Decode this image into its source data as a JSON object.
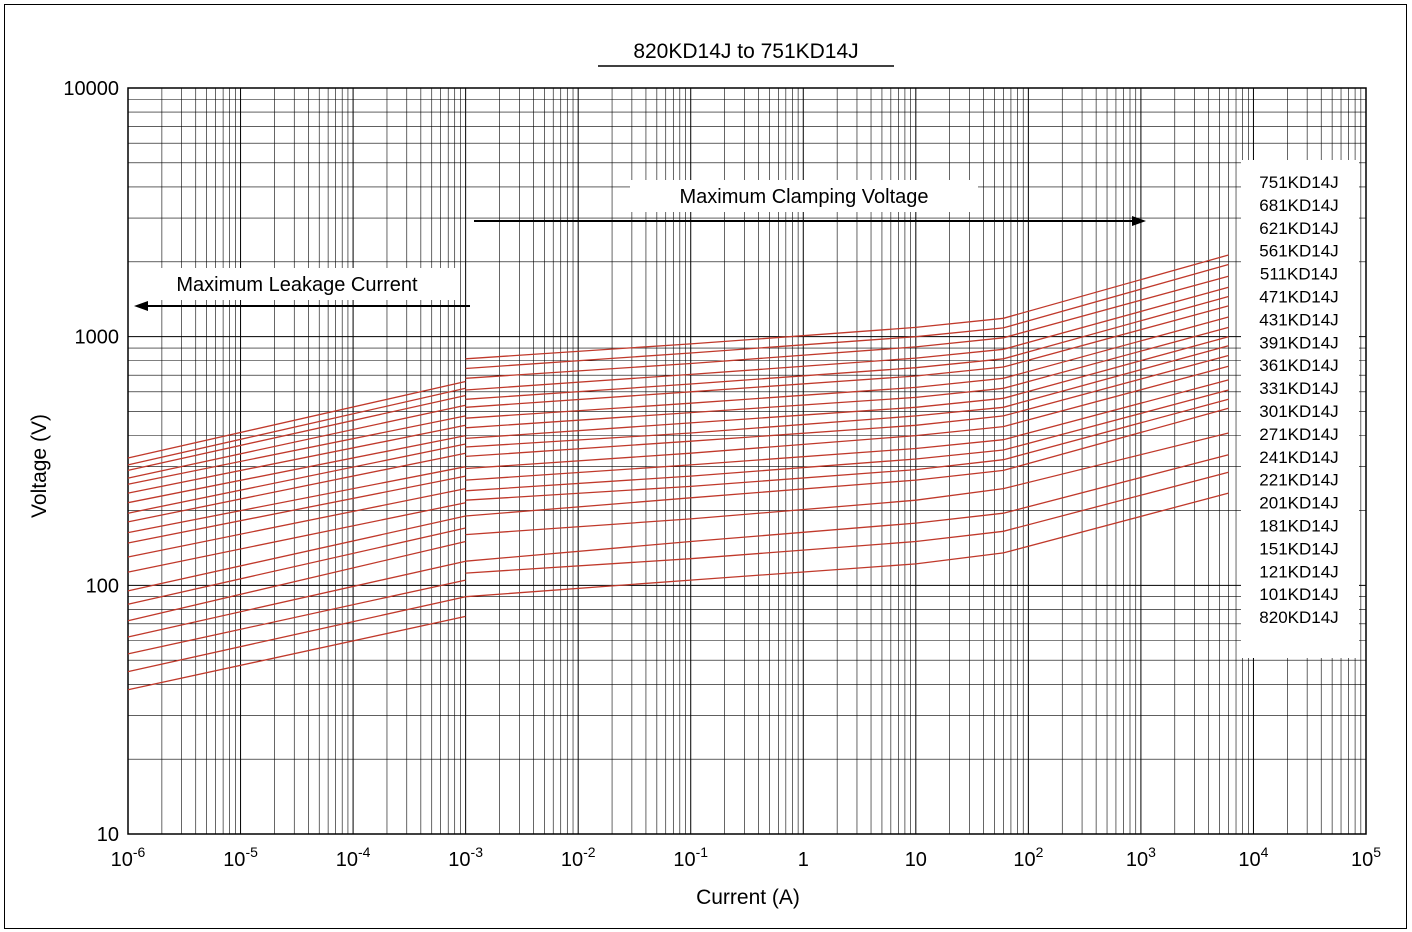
{
  "chart_data": {
    "type": "line",
    "title": "820KD14J to 751KD14J",
    "xlabel": "Current (A)",
    "ylabel": "Voltage (V)",
    "xscale": "log",
    "yscale": "log",
    "xlim": [
      1e-06,
      100000
    ],
    "ylim": [
      10,
      10000
    ],
    "grid": true,
    "x_ticks": [
      {
        "base": "10",
        "exp": "-6"
      },
      {
        "base": "10",
        "exp": "-5"
      },
      {
        "base": "10",
        "exp": "-4"
      },
      {
        "base": "10",
        "exp": "-3"
      },
      {
        "base": "10",
        "exp": "-2"
      },
      {
        "base": "10",
        "exp": "-1"
      },
      {
        "base": "1",
        "exp": ""
      },
      {
        "base": "10",
        "exp": ""
      },
      {
        "base": "10",
        "exp": "2"
      },
      {
        "base": "10",
        "exp": "3"
      },
      {
        "base": "10",
        "exp": "4"
      },
      {
        "base": "10",
        "exp": "5"
      }
    ],
    "y_ticks": [
      "10",
      "100",
      "1000",
      "10000"
    ],
    "line_color": "#c0392b",
    "annotations": {
      "leakage": "Maximum Leakage Current",
      "clamping": "Maximum Clamping Voltage"
    },
    "legend_position": "right",
    "series": [
      {
        "name": "820KD14J",
        "leakage": [
          [
            1e-06,
            38
          ],
          [
            0.001,
            75
          ]
        ],
        "clamping": [
          [
            0.001,
            90
          ],
          [
            0.1,
            105
          ],
          [
            10,
            122
          ],
          [
            60,
            135
          ],
          [
            6000,
            235
          ]
        ]
      },
      {
        "name": "101KD14J",
        "leakage": [
          [
            1e-06,
            45
          ],
          [
            0.001,
            90
          ]
        ],
        "clamping": [
          [
            0.001,
            112
          ],
          [
            0.1,
            128
          ],
          [
            10,
            150
          ],
          [
            60,
            165
          ],
          [
            6000,
            285
          ]
        ]
      },
      {
        "name": "121KD14J",
        "leakage": [
          [
            1e-06,
            53
          ],
          [
            0.001,
            105
          ]
        ],
        "clamping": [
          [
            0.001,
            125
          ],
          [
            0.1,
            150
          ],
          [
            10,
            178
          ],
          [
            60,
            195
          ],
          [
            6000,
            335
          ]
        ]
      },
      {
        "name": "151KD14J",
        "leakage": [
          [
            1e-06,
            62
          ],
          [
            0.001,
            125
          ]
        ],
        "clamping": [
          [
            0.001,
            160
          ],
          [
            0.1,
            185
          ],
          [
            10,
            220
          ],
          [
            60,
            245
          ],
          [
            6000,
            410
          ]
        ]
      },
      {
        "name": "181KD14J",
        "leakage": [
          [
            1e-06,
            72
          ],
          [
            0.001,
            150
          ]
        ],
        "clamping": [
          [
            0.001,
            190
          ],
          [
            0.1,
            225
          ],
          [
            10,
            265
          ],
          [
            60,
            290
          ],
          [
            6000,
            515
          ]
        ]
      },
      {
        "name": "201KD14J",
        "leakage": [
          [
            1e-06,
            84
          ],
          [
            0.001,
            170
          ]
        ],
        "clamping": [
          [
            0.001,
            220
          ],
          [
            0.1,
            250
          ],
          [
            10,
            292
          ],
          [
            60,
            320
          ],
          [
            6000,
            560
          ]
        ]
      },
      {
        "name": "221KD14J",
        "leakage": [
          [
            1e-06,
            95
          ],
          [
            0.001,
            190
          ]
        ],
        "clamping": [
          [
            0.001,
            240
          ],
          [
            0.1,
            275
          ],
          [
            10,
            322
          ],
          [
            60,
            350
          ],
          [
            6000,
            610
          ]
        ]
      },
      {
        "name": "241KD14J",
        "leakage": [
          [
            1e-06,
            113
          ],
          [
            0.001,
            215
          ]
        ],
        "clamping": [
          [
            0.001,
            265
          ],
          [
            0.1,
            305
          ],
          [
            10,
            355
          ],
          [
            60,
            385
          ],
          [
            6000,
            670
          ]
        ]
      },
      {
        "name": "271KD14J",
        "leakage": [
          [
            1e-06,
            130
          ],
          [
            0.001,
            245
          ]
        ],
        "clamping": [
          [
            0.001,
            295
          ],
          [
            0.1,
            340
          ],
          [
            10,
            400
          ],
          [
            60,
            435
          ],
          [
            6000,
            760
          ]
        ]
      },
      {
        "name": "301KD14J",
        "leakage": [
          [
            1e-06,
            148
          ],
          [
            0.001,
            275
          ]
        ],
        "clamping": [
          [
            0.001,
            330
          ],
          [
            0.1,
            380
          ],
          [
            10,
            440
          ],
          [
            60,
            480
          ],
          [
            6000,
            840
          ]
        ]
      },
      {
        "name": "331KD14J",
        "leakage": [
          [
            1e-06,
            163
          ],
          [
            0.001,
            300
          ]
        ],
        "clamping": [
          [
            0.001,
            360
          ],
          [
            0.1,
            410
          ],
          [
            10,
            480
          ],
          [
            60,
            520
          ],
          [
            6000,
            920
          ]
        ]
      },
      {
        "name": "361KD14J",
        "leakage": [
          [
            1e-06,
            180
          ],
          [
            0.001,
            340
          ]
        ],
        "clamping": [
          [
            0.001,
            390
          ],
          [
            0.1,
            450
          ],
          [
            10,
            520
          ],
          [
            60,
            565
          ],
          [
            6000,
            1000
          ]
        ]
      },
      {
        "name": "391KD14J",
        "leakage": [
          [
            1e-06,
            195
          ],
          [
            0.001,
            370
          ]
        ],
        "clamping": [
          [
            0.001,
            430
          ],
          [
            0.1,
            495
          ],
          [
            10,
            570
          ],
          [
            60,
            620
          ],
          [
            6000,
            1090
          ]
        ]
      },
      {
        "name": "431KD14J",
        "leakage": [
          [
            1e-06,
            215
          ],
          [
            0.001,
            400
          ]
        ],
        "clamping": [
          [
            0.001,
            470
          ],
          [
            0.1,
            540
          ],
          [
            10,
            625
          ],
          [
            60,
            680
          ],
          [
            6000,
            1200
          ]
        ]
      },
      {
        "name": "471KD14J",
        "leakage": [
          [
            1e-06,
            235
          ],
          [
            0.001,
            440
          ]
        ],
        "clamping": [
          [
            0.001,
            520
          ],
          [
            0.1,
            600
          ],
          [
            10,
            695
          ],
          [
            60,
            755
          ],
          [
            6000,
            1330
          ]
        ]
      },
      {
        "name": "511KD14J",
        "leakage": [
          [
            1e-06,
            255
          ],
          [
            0.001,
            480
          ]
        ],
        "clamping": [
          [
            0.001,
            560
          ],
          [
            0.1,
            645
          ],
          [
            10,
            750
          ],
          [
            60,
            815
          ],
          [
            6000,
            1450
          ]
        ]
      },
      {
        "name": "561KD14J",
        "leakage": [
          [
            1e-06,
            270
          ],
          [
            0.001,
            530
          ]
        ],
        "clamping": [
          [
            0.001,
            610
          ],
          [
            0.1,
            705
          ],
          [
            10,
            820
          ],
          [
            60,
            890
          ],
          [
            6000,
            1580
          ]
        ]
      },
      {
        "name": "621KD14J",
        "leakage": [
          [
            1e-06,
            290
          ],
          [
            0.001,
            580
          ]
        ],
        "clamping": [
          [
            0.001,
            680
          ],
          [
            0.1,
            780
          ],
          [
            10,
            910
          ],
          [
            60,
            990
          ],
          [
            6000,
            1750
          ]
        ]
      },
      {
        "name": "681KD14J",
        "leakage": [
          [
            1e-06,
            305
          ],
          [
            0.001,
            620
          ]
        ],
        "clamping": [
          [
            0.001,
            745
          ],
          [
            0.1,
            860
          ],
          [
            10,
            1000
          ],
          [
            60,
            1085
          ],
          [
            6000,
            1950
          ]
        ]
      },
      {
        "name": "751KD14J",
        "leakage": [
          [
            1e-06,
            325
          ],
          [
            0.001,
            660
          ]
        ],
        "clamping": [
          [
            0.001,
            815
          ],
          [
            0.1,
            935
          ],
          [
            10,
            1090
          ],
          [
            60,
            1185
          ],
          [
            6000,
            2130
          ]
        ]
      }
    ]
  }
}
